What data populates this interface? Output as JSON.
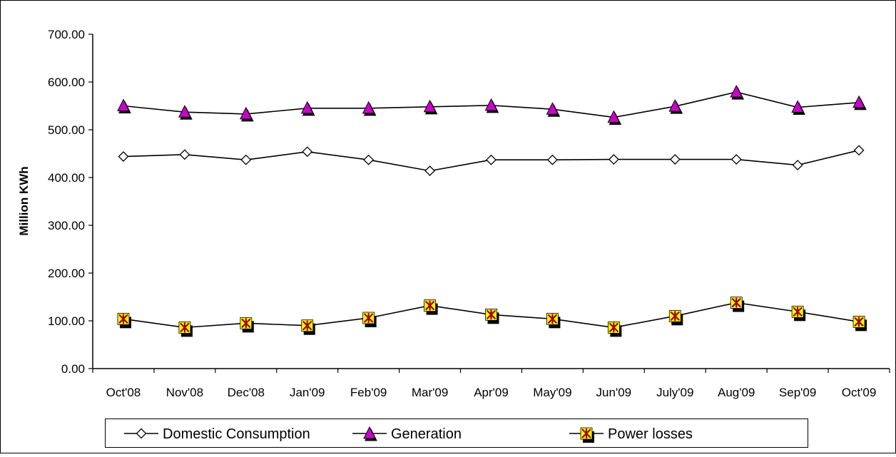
{
  "chart_data": {
    "type": "line",
    "categories": [
      "Oct'08",
      "Nov'08",
      "Dec'08",
      "Jan'09",
      "Feb'09",
      "Mar'09",
      "Apr'09",
      "May'09",
      "Jun'09",
      "July'09",
      "Aug'09",
      "Sep'09",
      "Oct'09"
    ],
    "ylabel": "Million KWh",
    "xlabel": "",
    "ylim": [
      0,
      700
    ],
    "yticks": [
      "0.00",
      "100.00",
      "200.00",
      "300.00",
      "400.00",
      "500.00",
      "600.00",
      "700.00"
    ],
    "grid": false,
    "legend_position": "bottom",
    "series": [
      {
        "name": "Domestic Consumption",
        "marker": "diamond",
        "marker_color": "#ffffff",
        "values": [
          444,
          448,
          437,
          454,
          437,
          414,
          437,
          437,
          438,
          438,
          438,
          426,
          457
        ]
      },
      {
        "name": "Generation",
        "marker": "triangle",
        "marker_color": "#cc00cc",
        "values": [
          550,
          537,
          533,
          545,
          545,
          548,
          551,
          543,
          526,
          549,
          579,
          547,
          557
        ]
      },
      {
        "name": "Power losses",
        "marker": "asterisk",
        "marker_color": "#ffff00",
        "values": [
          104,
          86,
          95,
          90,
          106,
          132,
          113,
          104,
          86,
          110,
          138,
          119,
          98
        ]
      }
    ]
  }
}
